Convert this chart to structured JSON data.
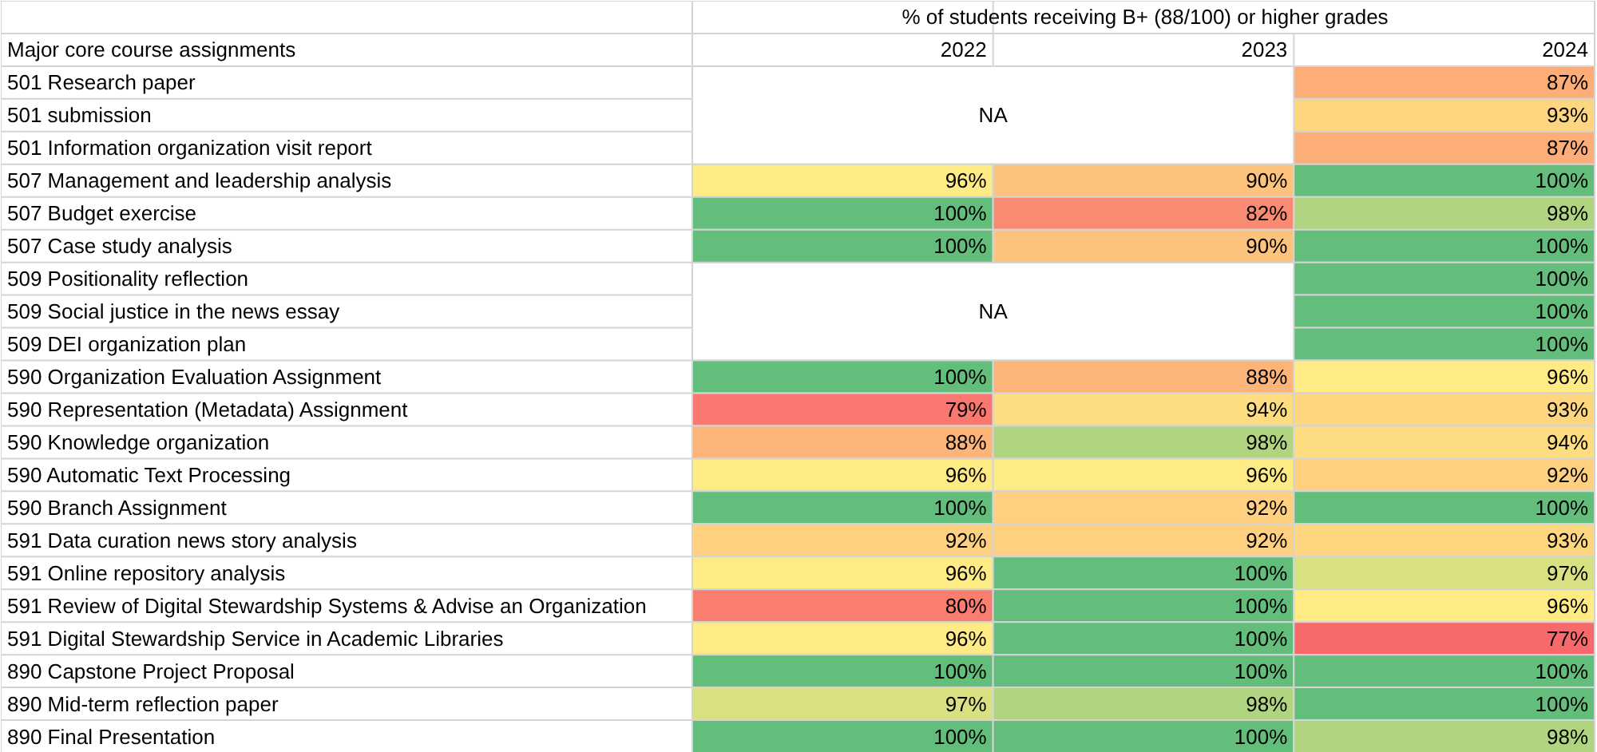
{
  "chart_data": {
    "type": "heatmap",
    "title": "% of students receiving B+ (88/100) or higher grades",
    "ylabel": "Major core course assignments",
    "categories": [
      "2022",
      "2023",
      "2024"
    ],
    "y_categories": [
      "501 Research paper",
      "501 submission",
      "501 Information organization visit report",
      "507 Management and leadership analysis",
      "507 Budget exercise",
      "507 Case study analysis",
      "509 Positionality reflection",
      "509 Social justice in the news essay",
      "509 DEI organization plan",
      "590 Organization Evaluation Assignment",
      "590 Representation (Metadata) Assignment",
      "590 Knowledge organization",
      "590 Automatic Text Processing",
      "590 Branch Assignment",
      "591 Data curation news story analysis",
      "591 Online repository analysis",
      "591 Review of Digital Stewardship Systems & Advise an Organization",
      "591 Digital Stewardship Service in Academic Libraries",
      "890 Capstone Project Proposal",
      "890 Mid-term reflection paper",
      "890 Final Presentation"
    ],
    "cells": [
      [
        null,
        null,
        87
      ],
      [
        null,
        null,
        93
      ],
      [
        null,
        null,
        87
      ],
      [
        96,
        90,
        100
      ],
      [
        100,
        82,
        98
      ],
      [
        100,
        90,
        100
      ],
      [
        null,
        null,
        100
      ],
      [
        null,
        null,
        100
      ],
      [
        null,
        null,
        100
      ],
      [
        100,
        88,
        96
      ],
      [
        79,
        94,
        93
      ],
      [
        88,
        98,
        94
      ],
      [
        96,
        96,
        92
      ],
      [
        100,
        92,
        100
      ],
      [
        92,
        92,
        93
      ],
      [
        96,
        100,
        97
      ],
      [
        80,
        100,
        96
      ],
      [
        96,
        100,
        77
      ],
      [
        100,
        100,
        100
      ],
      [
        97,
        98,
        100
      ],
      [
        100,
        100,
        98
      ]
    ],
    "cell_labels": [
      [
        null,
        null,
        "87%"
      ],
      [
        null,
        null,
        "93%"
      ],
      [
        null,
        null,
        "87%"
      ],
      [
        "96%",
        "90%",
        "100%"
      ],
      [
        "100%",
        "82%",
        "98%"
      ],
      [
        "100%",
        "90%",
        "100%"
      ],
      [
        null,
        null,
        "100%"
      ],
      [
        null,
        null,
        "100%"
      ],
      [
        null,
        null,
        "100%"
      ],
      [
        "100%",
        "88%",
        "96%"
      ],
      [
        "79%",
        "94%",
        "93%"
      ],
      [
        "88%",
        "98%",
        "94%"
      ],
      [
        "96%",
        "96%",
        "92%"
      ],
      [
        "100%",
        "92%",
        "100%"
      ],
      [
        "92%",
        "92%",
        "93%"
      ],
      [
        "96%",
        "100%",
        "97%"
      ],
      [
        "80%",
        "100%",
        "96%"
      ],
      [
        "96%",
        "100%",
        "77%"
      ],
      [
        "100%",
        "100%",
        "100%"
      ],
      [
        "97%",
        "98%",
        "100%"
      ],
      [
        "100%",
        "100%",
        "98%"
      ]
    ],
    "annotations": [
      "NA",
      "NA"
    ]
  }
}
